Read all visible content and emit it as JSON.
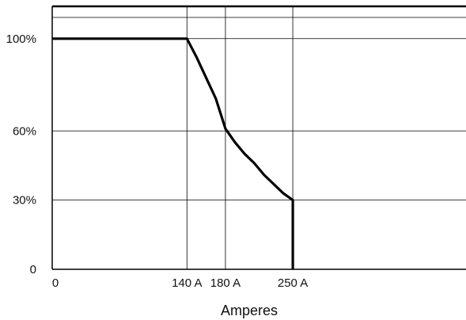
{
  "chart_data": {
    "type": "line",
    "xlabel": "Amperes",
    "ylabel": "",
    "x_ticks": [
      {
        "value": 0,
        "label": "0"
      },
      {
        "value": 140,
        "label": "140 A"
      },
      {
        "value": 180,
        "label": "180 A"
      },
      {
        "value": 250,
        "label": "250 A"
      }
    ],
    "y_ticks": [
      {
        "value": 0,
        "label": "0"
      },
      {
        "value": 30,
        "label": "30%"
      },
      {
        "value": 60,
        "label": "60%"
      },
      {
        "value": 100,
        "label": "100%"
      }
    ],
    "xlim": [
      0,
      430
    ],
    "ylim": [
      0,
      114
    ],
    "grid": true,
    "series": [
      {
        "points": [
          [
            0,
            100
          ],
          [
            140,
            100
          ],
          [
            150,
            92
          ],
          [
            160,
            83
          ],
          [
            170,
            74
          ],
          [
            180,
            61
          ],
          [
            190,
            55
          ],
          [
            200,
            50
          ],
          [
            210,
            46
          ],
          [
            220,
            41
          ],
          [
            230,
            37
          ],
          [
            240,
            33
          ],
          [
            250,
            30
          ],
          [
            250,
            0
          ]
        ]
      }
    ],
    "colors": {
      "line": "#000000",
      "grid": "#000000"
    }
  }
}
